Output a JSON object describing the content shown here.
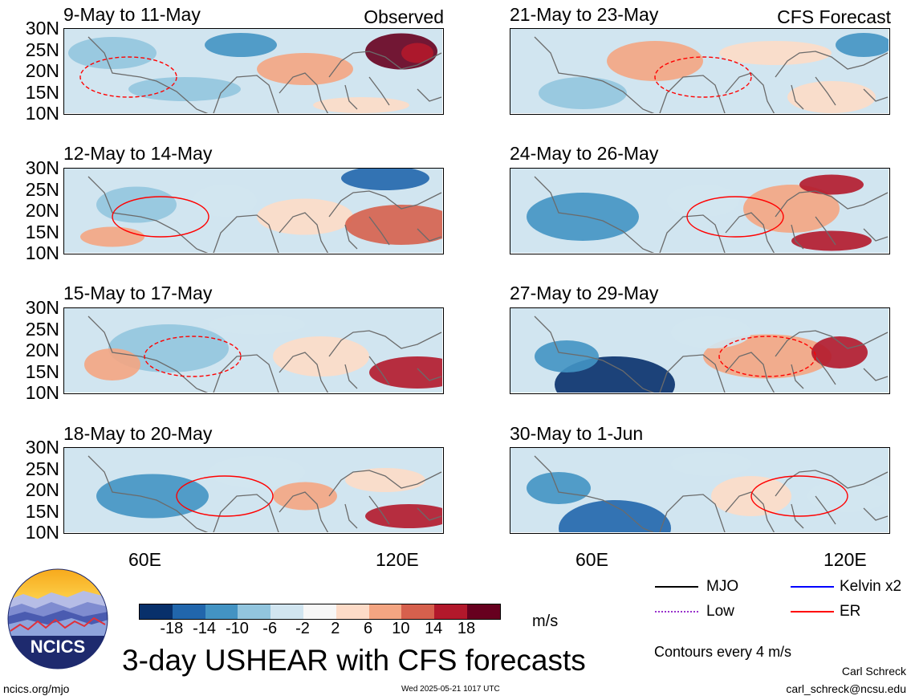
{
  "panels": [
    {
      "title": "9-May to 11-May",
      "tag": "Observed",
      "col": 0,
      "row": 0
    },
    {
      "title": "12-May to 14-May",
      "tag": "",
      "col": 0,
      "row": 1
    },
    {
      "title": "15-May to 17-May",
      "tag": "",
      "col": 0,
      "row": 2
    },
    {
      "title": "18-May to 20-May",
      "tag": "",
      "col": 0,
      "row": 3
    },
    {
      "title": "21-May to 23-May",
      "tag": "CFS Forecast",
      "col": 1,
      "row": 0
    },
    {
      "title": "24-May to 26-May",
      "tag": "",
      "col": 1,
      "row": 1
    },
    {
      "title": "27-May to 29-May",
      "tag": "",
      "col": 1,
      "row": 2
    },
    {
      "title": "30-May to 1-Jun",
      "tag": "",
      "col": 1,
      "row": 3
    }
  ],
  "lat_labels": [
    "30N",
    "25N",
    "20N",
    "15N",
    "10N"
  ],
  "lon_labels": [
    "60E",
    "120E"
  ],
  "colorbar": {
    "colors": [
      "#08306b",
      "#2166ac",
      "#4393c3",
      "#92c5de",
      "#d1e5f0",
      "#f7f7f7",
      "#fddbc7",
      "#f4a582",
      "#d6604d",
      "#b2182b",
      "#67001f"
    ],
    "tick_labels": [
      "-18",
      "-14",
      "-10",
      "-6",
      "-2",
      "2",
      "6",
      "10",
      "14",
      "18"
    ],
    "units": "m/s"
  },
  "legend": [
    {
      "label": "MJO",
      "color": "#000000"
    },
    {
      "label": "Kelvin x2",
      "color": "#0000ff"
    },
    {
      "label": "Low",
      "color": "#9933cc"
    },
    {
      "label": "ER",
      "color": "#ff0000"
    }
  ],
  "contour_note": "Contours every 4 m/s",
  "main_title": "3-day USHEAR with CFS forecasts",
  "logo_text": "NCICS",
  "site": "ncics.org/mjo",
  "timestamp": "Wed 2025-05-21 1017 UTC",
  "author": "Carl Schreck",
  "email": "carl_schreck@ncsu.edu"
}
